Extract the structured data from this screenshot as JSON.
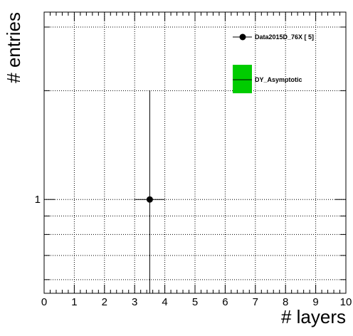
{
  "chart_data": {
    "type": "scatter",
    "xlabel": "# layers",
    "ylabel": "# entries",
    "xlim": [
      0,
      10
    ],
    "ylog": true,
    "ylim": [
      0.55,
      3.3
    ],
    "x_ticks": [
      "0",
      "1",
      "2",
      "3",
      "4",
      "5",
      "6",
      "7",
      "8",
      "9",
      "10"
    ],
    "y_ticks": [
      "1"
    ],
    "grid": true,
    "legend_position": "top-right",
    "series": [
      {
        "name": "Data2015D_76X [        5]",
        "kind": "points-with-errors",
        "color": "#000000",
        "points": [
          {
            "x": 3.5,
            "y": 1,
            "x_err": 0.5,
            "y_low": 0.0,
            "y_high": 2.0
          }
        ]
      },
      {
        "name": "DY_Asymptotic",
        "kind": "histogram-band",
        "color": "#00cc00",
        "points": []
      }
    ]
  }
}
